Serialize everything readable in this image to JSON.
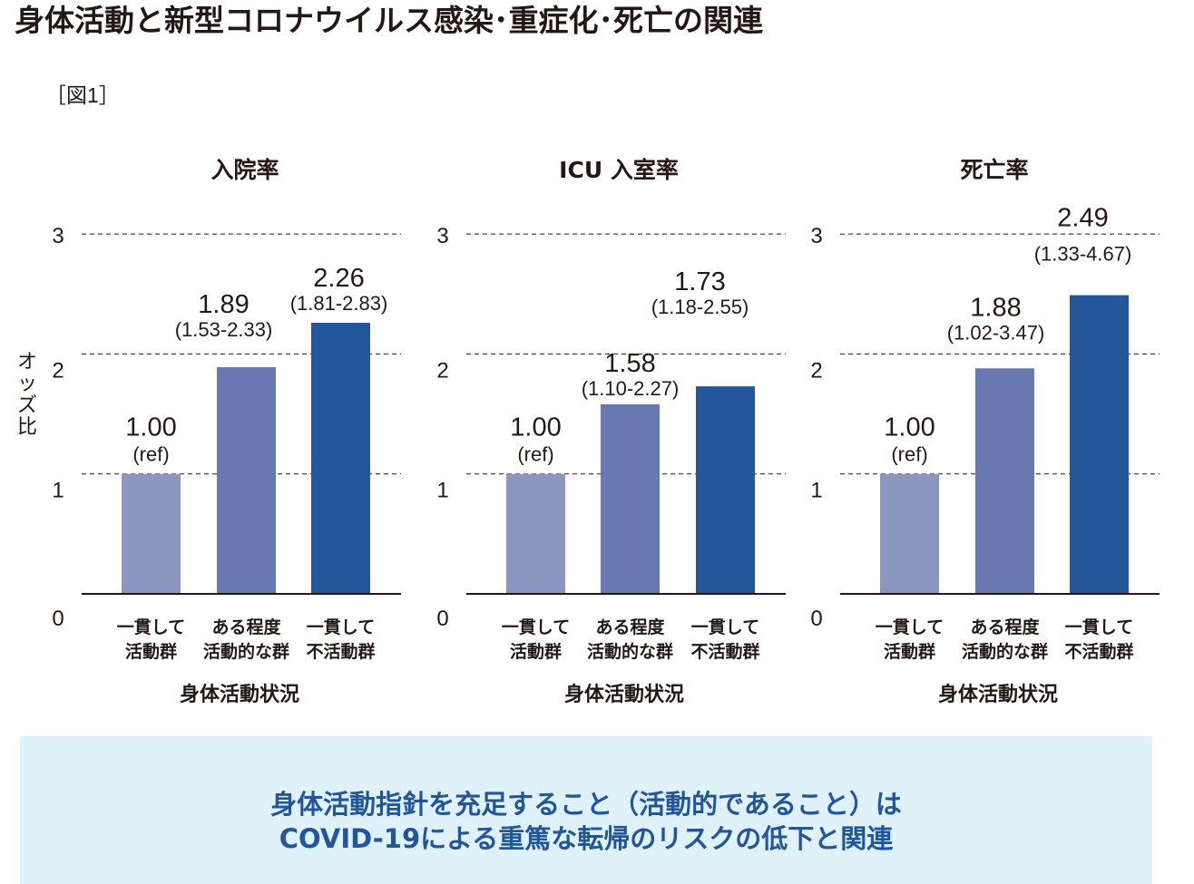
{
  "title": "身体活動と新型コロナウイルス感染･重症化･死亡の関連",
  "figure_label": "［図1］",
  "y_axis_label": [
    "オ",
    "ッ",
    "ズ",
    "比"
  ],
  "banner": {
    "line1": "身体活動指針を充足すること（活動的であること）は",
    "line2": "COVID-19による重篤な転帰のリスクの低下と関連",
    "background": "#dff1f9",
    "text_color": "#22569a"
  },
  "chart_data": [
    {
      "type": "bar",
      "title": "入院率",
      "xlabel": "身体活動状況",
      "ylabel": "オッズ比",
      "ylim": [
        0,
        3
      ],
      "yticks": [
        0,
        1,
        2,
        3
      ],
      "grid": "dashed horizontal at 1, 2, 3",
      "categories": [
        [
          "一貫して",
          "活動群"
        ],
        [
          "ある程度",
          "活動的な群"
        ],
        [
          "一貫して",
          "不活動群"
        ]
      ],
      "values": [
        1.0,
        1.89,
        2.26
      ],
      "value_labels": [
        "1.00",
        "1.89",
        "2.26"
      ],
      "ci_labels": [
        "(ref)",
        "(1.53-2.33)",
        "(1.81-2.83)"
      ],
      "colors": [
        "#8b96c1",
        "#6878b0",
        "#235799"
      ]
    },
    {
      "type": "bar",
      "title": "ICU 入室率",
      "xlabel": "身体活動状況",
      "ylabel": "オッズ比",
      "ylim": [
        0,
        3
      ],
      "yticks": [
        0,
        1,
        2,
        3
      ],
      "grid": "dashed horizontal at 1, 2, 3",
      "categories": [
        [
          "一貫して",
          "活動群"
        ],
        [
          "ある程度",
          "活動的な群"
        ],
        [
          "一貫して",
          "不活動群"
        ]
      ],
      "values": [
        1.0,
        1.58,
        1.73
      ],
      "value_labels": [
        "1.00",
        "1.58",
        "1.73"
      ],
      "ci_labels": [
        "(ref)",
        "(1.10-2.27)",
        "(1.18-2.55)"
      ],
      "colors": [
        "#8b96c1",
        "#6878b0",
        "#235799"
      ]
    },
    {
      "type": "bar",
      "title": "死亡率",
      "xlabel": "身体活動状況",
      "ylabel": "オッズ比",
      "ylim": [
        0,
        3
      ],
      "yticks": [
        0,
        1,
        2,
        3
      ],
      "grid": "dashed horizontal at 1, 2, 3",
      "categories": [
        [
          "一貫して",
          "活動群"
        ],
        [
          "ある程度",
          "活動的な群"
        ],
        [
          "一貫して",
          "不活動群"
        ]
      ],
      "values": [
        1.0,
        1.88,
        2.49
      ],
      "value_labels": [
        "1.00",
        "1.88",
        "2.49"
      ],
      "ci_labels": [
        "(ref)",
        "(1.02-3.47)",
        "(1.33-4.67)"
      ],
      "colors": [
        "#8b96c1",
        "#6878b0",
        "#235799"
      ]
    }
  ]
}
